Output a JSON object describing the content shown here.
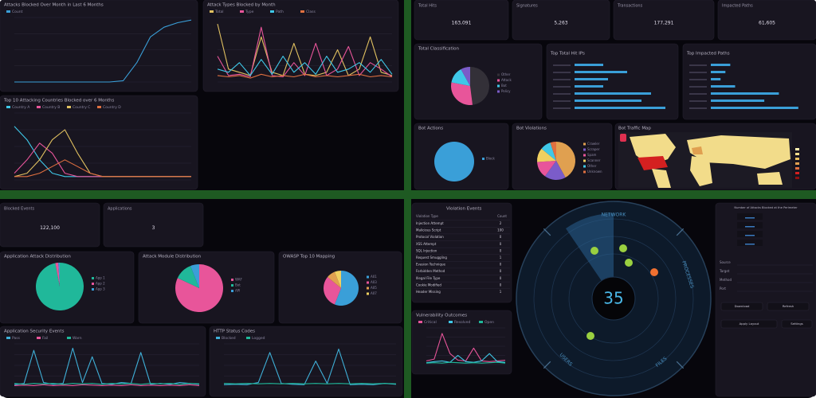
{
  "top_left": {
    "blocked_by_month": {
      "title": "Attacks Blocked Over Month in Last 6 Months",
      "ylim": [
        0,
        100
      ],
      "series": [
        {
          "name": "Count",
          "color": "#3a9fd8",
          "values": [
            0,
            0,
            0,
            0,
            0,
            0,
            0,
            0,
            2,
            30,
            70,
            85,
            92,
            96
          ]
        }
      ]
    },
    "types_by_month": {
      "title": "Attack Types Blocked by Month",
      "ylim": [
        0,
        100
      ],
      "series": [
        {
          "name": "Total",
          "color": "#e0c060",
          "values": [
            90,
            20,
            15,
            10,
            70,
            15,
            10,
            60,
            12,
            10,
            15,
            50,
            10,
            20,
            70,
            15,
            10
          ]
        },
        {
          "name": "Type",
          "color": "#e8559a",
          "values": [
            40,
            10,
            12,
            8,
            85,
            10,
            8,
            30,
            10,
            60,
            10,
            20,
            55,
            10,
            30,
            20,
            8
          ]
        },
        {
          "name": "Path",
          "color": "#3fc8e8",
          "values": [
            20,
            15,
            30,
            10,
            35,
            12,
            40,
            15,
            30,
            12,
            40,
            15,
            20,
            30,
            15,
            35,
            12
          ]
        },
        {
          "name": "Class",
          "color": "#e07040",
          "values": [
            10,
            8,
            10,
            6,
            12,
            8,
            10,
            8,
            12,
            8,
            10,
            8,
            10,
            12,
            8,
            10,
            8
          ]
        }
      ]
    },
    "top_countries": {
      "title": "Top 10 Attacking Countries Blocked over 6 Months",
      "ylim": [
        0,
        100
      ],
      "series": [
        {
          "name": "Country A",
          "color": "#3fc8e8",
          "values": [
            80,
            60,
            30,
            10,
            5,
            5,
            5,
            5,
            5,
            5,
            5,
            5,
            5,
            5,
            5
          ]
        },
        {
          "name": "Country B",
          "color": "#e8559a",
          "values": [
            10,
            30,
            55,
            40,
            10,
            5,
            5,
            5,
            5,
            5,
            5,
            5,
            5,
            5,
            5
          ]
        },
        {
          "name": "Country C",
          "color": "#e0c060",
          "values": [
            5,
            10,
            30,
            60,
            75,
            40,
            10,
            5,
            5,
            5,
            5,
            5,
            5,
            5,
            5
          ]
        },
        {
          "name": "Country D",
          "color": "#e07040",
          "values": [
            5,
            5,
            10,
            20,
            30,
            20,
            10,
            5,
            5,
            5,
            5,
            5,
            5,
            5,
            5
          ]
        }
      ]
    }
  },
  "top_right": {
    "stats": [
      {
        "label": "Total Hits",
        "value": "163,091"
      },
      {
        "label": "Signatures",
        "value": "5,263"
      },
      {
        "label": "Transactions",
        "value": "177,291"
      },
      {
        "label": "Impacted Paths",
        "value": "61,605"
      }
    ],
    "classification": {
      "title": "Total Classification",
      "labels": [
        "Other",
        "Attack",
        "Bot",
        "Policy"
      ],
      "values": [
        48,
        30,
        14,
        8
      ],
      "colors": [
        "#333038",
        "#e8559a",
        "#3fc8e8",
        "#7b5cc9"
      ]
    },
    "top_ips": {
      "title": "Top Total Hit IPs",
      "values": [
        30,
        55,
        35,
        30,
        80,
        70,
        95
      ],
      "color": "#3a9fd8"
    },
    "top_paths": {
      "title": "Top Impacted Paths",
      "values": [
        20,
        15,
        10,
        25,
        70,
        55,
        90
      ],
      "color": "#3a9fd8"
    },
    "bot_actions": {
      "title": "Bot Actions",
      "labels": [
        "Block"
      ],
      "values": [
        100
      ],
      "colors": [
        "#3a9fd8"
      ]
    },
    "bot_violations": {
      "title": "Bot Violations",
      "labels": [
        "Crawler",
        "Scraper",
        "Spam",
        "Scanner",
        "Other",
        "Unknown"
      ],
      "values": [
        42,
        18,
        14,
        12,
        9,
        5
      ],
      "colors": [
        "#e0a050",
        "#7b5cc9",
        "#e8559a",
        "#f0d060",
        "#3fc8e8",
        "#e07040"
      ]
    },
    "bot_map": {
      "title": "Bot Traffic Map"
    }
  },
  "bottom_left": {
    "stats": [
      {
        "label": "Blocked Events",
        "value": "122,100"
      },
      {
        "label": "Applications",
        "value": "3"
      }
    ],
    "app_attack": {
      "title": "Application Attack Distribution",
      "labels": [
        "App 1",
        "App 2",
        "App 3"
      ],
      "values": [
        97,
        2,
        1
      ],
      "colors": [
        "#20b89a",
        "#e8559a",
        "#3a9fd8"
      ]
    },
    "attack_module": {
      "title": "Attack Module Distribution",
      "labels": [
        "WAF",
        "Bot",
        "API"
      ],
      "values": [
        82,
        12,
        6
      ],
      "colors": [
        "#e8559a",
        "#20b89a",
        "#3a9fd8"
      ]
    },
    "owasp": {
      "title": "OWASP Top 10 Mapping",
      "labels": [
        "A01",
        "A03",
        "A05",
        "A07"
      ],
      "values": [
        56,
        30,
        8,
        6
      ],
      "colors": [
        "#3a9fd8",
        "#e8559a",
        "#e0a050",
        "#f0d060"
      ]
    },
    "security_events": {
      "title": "Application Security Events",
      "ylim": [
        0,
        100
      ],
      "series": [
        {
          "name": "Pass",
          "color": "#3fb0d8",
          "values": [
            5,
            8,
            85,
            10,
            6,
            8,
            90,
            10,
            70,
            8,
            6,
            10,
            8,
            80,
            6,
            8,
            6,
            10,
            8,
            6
          ]
        },
        {
          "name": "Fail",
          "color": "#e8559a",
          "values": [
            3,
            4,
            3,
            5,
            3,
            4,
            3,
            5,
            4,
            3,
            4,
            3,
            5,
            3,
            4,
            3,
            4,
            3,
            5,
            3
          ]
        },
        {
          "name": "Warn",
          "color": "#20b89a",
          "values": [
            8,
            6,
            8,
            7,
            8,
            6,
            8,
            7,
            8,
            6,
            8,
            7,
            8,
            6,
            8,
            7,
            8,
            6,
            8,
            7
          ]
        }
      ]
    },
    "http_status": {
      "title": "HTTP Status Codes",
      "ylim": [
        0,
        100
      ],
      "series": [
        {
          "name": "Blocked",
          "color": "#3fb0d8",
          "values": [
            5,
            6,
            5,
            10,
            80,
            8,
            6,
            5,
            60,
            8,
            88,
            5,
            6,
            5,
            8,
            6
          ]
        },
        {
          "name": "Logged",
          "color": "#20b89a",
          "values": [
            8,
            7,
            8,
            7,
            8,
            7,
            8,
            7,
            8,
            7,
            8,
            7,
            8,
            7,
            8,
            7
          ]
        }
      ]
    }
  },
  "bottom_right": {
    "table": {
      "title": "Violation Events",
      "columns": [
        "Violation Type",
        "Count"
      ],
      "rows": [
        [
          "Injection Attempt",
          "2"
        ],
        [
          "Malicious Script",
          "100"
        ],
        [
          "Protocol Violation",
          "0"
        ],
        [
          "XSS Attempt",
          "0"
        ],
        [
          "SQL Injection",
          "0"
        ],
        [
          "Request Smuggling",
          "1"
        ],
        [
          "Evasion Technique",
          "0"
        ],
        [
          "Forbidden Method",
          "0"
        ],
        [
          "Illegal File Type",
          "0"
        ],
        [
          "Cookie Modified",
          "0"
        ],
        [
          "Header Missing",
          "1"
        ]
      ]
    },
    "outcomes": {
      "title": "Vulnerability Outcomes",
      "ylim": [
        0,
        100
      ],
      "series": [
        {
          "name": "Critical",
          "color": "#e8559a",
          "values": [
            10,
            15,
            85,
            30,
            12,
            10,
            45,
            10,
            8,
            10,
            12
          ]
        },
        {
          "name": "Resolved",
          "color": "#3fc8e8",
          "values": [
            5,
            8,
            10,
            6,
            25,
            8,
            6,
            10,
            30,
            8,
            6
          ]
        },
        {
          "name": "Open",
          "color": "#20b89a",
          "values": [
            4,
            5,
            4,
            6,
            5,
            4,
            5,
            4,
            5,
            6,
            4
          ]
        }
      ]
    },
    "radar": {
      "value": "35",
      "axes": [
        "NETWORK",
        "PROCESSES",
        "FILES",
        "USERS"
      ]
    },
    "perimeter": {
      "title": "Number of Attacks Blocked at the Perimeter",
      "fields": [
        "Source",
        "Target",
        "Method",
        "Port"
      ],
      "buttons": [
        "Download",
        "Refresh",
        "Apply Layout",
        "Settings"
      ]
    }
  }
}
